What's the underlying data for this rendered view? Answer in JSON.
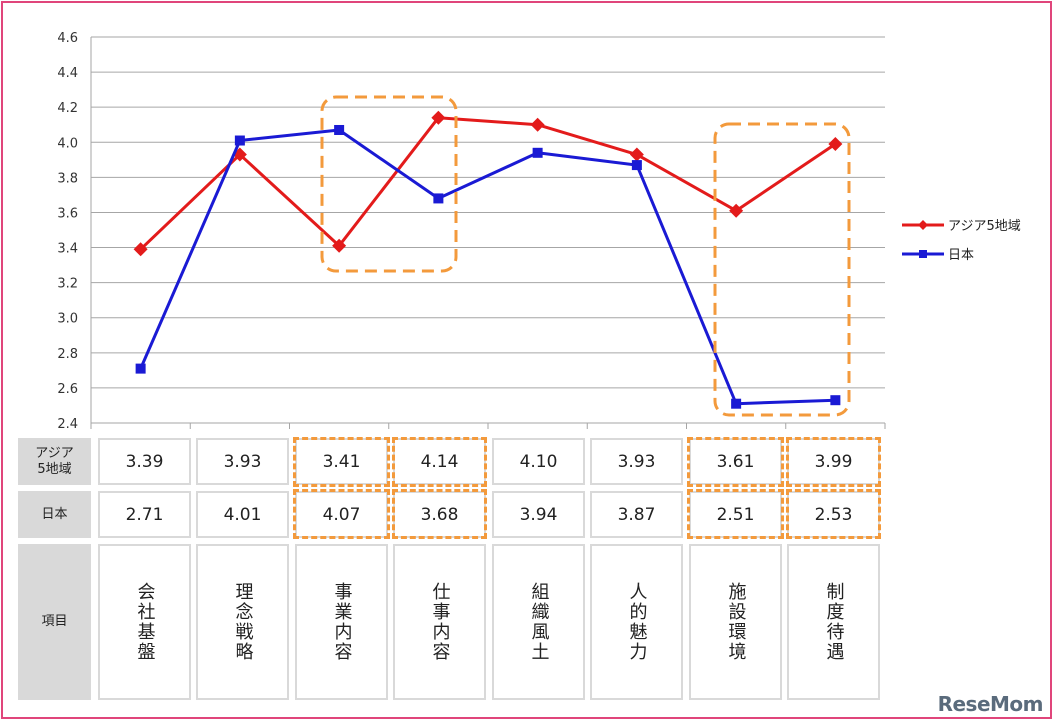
{
  "chart_data": {
    "type": "line",
    "categories": [
      "会社基盤",
      "理念戦略",
      "事業内容",
      "仕事内容",
      "組織風土",
      "人的魅力",
      "施設環境",
      "制度待遇"
    ],
    "ylim": [
      2.4,
      4.6
    ],
    "yticks": [
      "2.4",
      "2.6",
      "2.8",
      "3.0",
      "3.2",
      "3.4",
      "3.6",
      "3.8",
      "4.0",
      "4.2",
      "4.4",
      "4.6"
    ],
    "grid": true,
    "legend_position": "right",
    "series": [
      {
        "name": "アジア5地域",
        "color": "#e31b1b",
        "marker": "diamond",
        "values": [
          3.39,
          3.93,
          3.41,
          4.14,
          4.1,
          3.93,
          3.61,
          3.99
        ]
      },
      {
        "name": "日本",
        "color": "#1a1ad4",
        "marker": "square",
        "values": [
          2.71,
          4.01,
          4.07,
          3.68,
          3.94,
          3.87,
          2.51,
          2.53
        ]
      }
    ],
    "highlight_color": "#f39a3c"
  },
  "table": {
    "row1_header": "アジア\n5地域",
    "row1_values": [
      "3.39",
      "3.93",
      "3.41",
      "4.14",
      "4.10",
      "3.93",
      "3.61",
      "3.99"
    ],
    "row2_header": "日本",
    "row2_values": [
      "2.71",
      "4.01",
      "4.07",
      "3.68",
      "3.94",
      "3.87",
      "2.51",
      "2.53"
    ],
    "row3_header": "項目",
    "items": [
      "会社基盤",
      "理念戦略",
      "事業内容",
      "仕事内容",
      "組織風土",
      "人的魅力",
      "施設環境",
      "制度待遇"
    ]
  },
  "logo_text": "ReseMom"
}
